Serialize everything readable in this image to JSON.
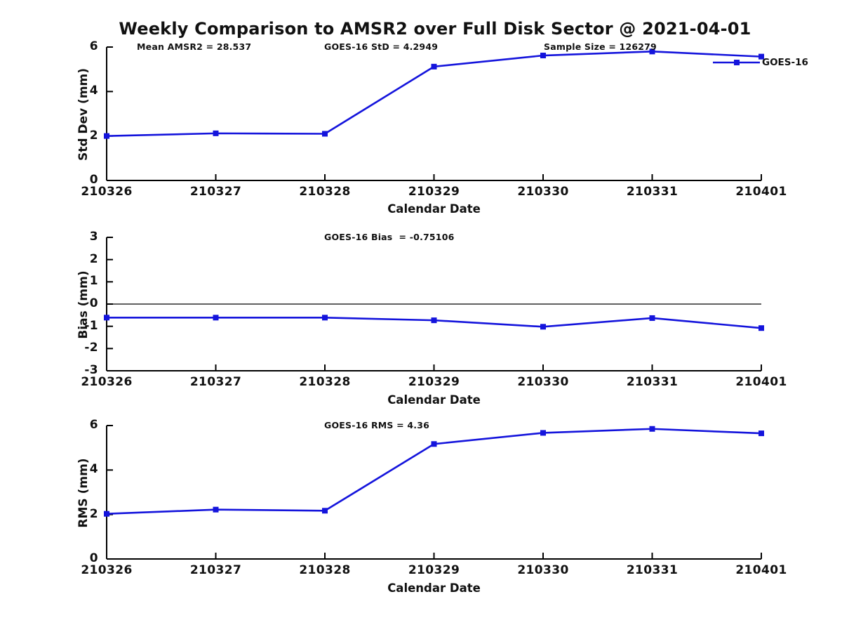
{
  "title": "Weekly Comparison to AMSR2 over Full Disk Sector @ 2021-04-01",
  "legend": {
    "label": "GOES-16",
    "color": "#1414dc",
    "position": "upper-right"
  },
  "stats": {
    "mean_amsr2": "28.537",
    "goes16_std": "4.2949",
    "sample_size": "126279",
    "goes16_bias": "-0.75106",
    "goes16_rms": "4.36"
  },
  "chart_data": [
    {
      "type": "line",
      "title": "",
      "ylabel": "Std Dev (mm)",
      "xlabel": "Calendar Date",
      "categories": [
        "210326",
        "210327",
        "210328",
        "210329",
        "210330",
        "210331",
        "210401"
      ],
      "series": [
        {
          "name": "GOES-16",
          "color": "#1414dc",
          "marker": "square",
          "values": [
            2.0,
            2.12,
            2.1,
            5.12,
            5.62,
            5.8,
            5.57
          ]
        }
      ],
      "ylim": [
        0,
        6
      ],
      "yticks": [
        0,
        2,
        4,
        6
      ],
      "grid": false,
      "zero_line": false,
      "show_legend": true,
      "legend_position": "upper right",
      "annotations": [
        "Mean AMSR2 = 28.537",
        "GOES-16 StD = 4.2949",
        "Sample Size = 126279"
      ]
    },
    {
      "type": "line",
      "title": "",
      "ylabel": "Bias (mm)",
      "xlabel": "Calendar Date",
      "categories": [
        "210326",
        "210327",
        "210328",
        "210329",
        "210330",
        "210331",
        "210401"
      ],
      "series": [
        {
          "name": "GOES-16",
          "color": "#1414dc",
          "marker": "square",
          "values": [
            -0.61,
            -0.61,
            -0.61,
            -0.73,
            -1.02,
            -0.63,
            -1.08
          ]
        }
      ],
      "ylim": [
        -3,
        3
      ],
      "yticks": [
        -3,
        -2,
        -1,
        0,
        1,
        2,
        3
      ],
      "grid": false,
      "zero_line": true,
      "show_legend": false,
      "annotations": [
        "GOES-16 Bias  = -0.75106"
      ]
    },
    {
      "type": "line",
      "title": "",
      "ylabel": "RMS (mm)",
      "xlabel": "Calendar Date",
      "categories": [
        "210326",
        "210327",
        "210328",
        "210329",
        "210330",
        "210331",
        "210401"
      ],
      "series": [
        {
          "name": "GOES-16",
          "color": "#1414dc",
          "marker": "square",
          "values": [
            2.03,
            2.22,
            2.17,
            5.17,
            5.67,
            5.85,
            5.65
          ]
        }
      ],
      "ylim": [
        0,
        6
      ],
      "yticks": [
        0,
        2,
        4,
        6
      ],
      "grid": false,
      "zero_line": false,
      "show_legend": false,
      "annotations": [
        "GOES-16 RMS = 4.36"
      ]
    }
  ]
}
